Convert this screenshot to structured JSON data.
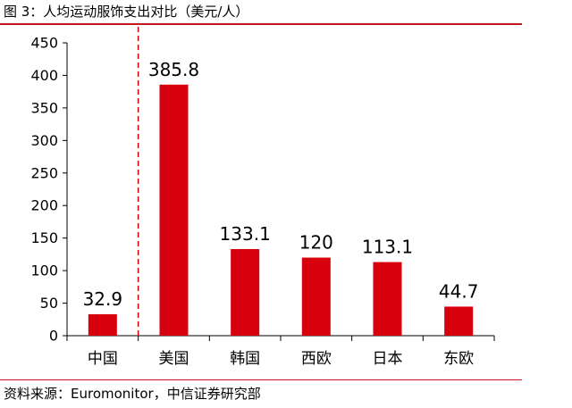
{
  "chart_data": {
    "type": "bar",
    "title": "图 3：人均运动服饰支出对比（美元/人）",
    "categories": [
      "中国",
      "美国",
      "韩国",
      "西欧",
      "日本",
      "东欧"
    ],
    "values": [
      32.9,
      385.8,
      133.1,
      120,
      113.1,
      44.7
    ],
    "value_labels": [
      "32.9",
      "385.8",
      "133.1",
      "120",
      "113.1",
      "44.7"
    ],
    "yticks": [
      0,
      50,
      100,
      150,
      200,
      250,
      300,
      350,
      400,
      450
    ],
    "ylim": [
      0,
      450
    ],
    "xlabel": "",
    "ylabel": "",
    "grid": false,
    "legend": "none",
    "bar_color": "#d6000f",
    "divider_color": "#d6000f",
    "source": "资料来源：Euromonitor，中信证券研究部"
  }
}
